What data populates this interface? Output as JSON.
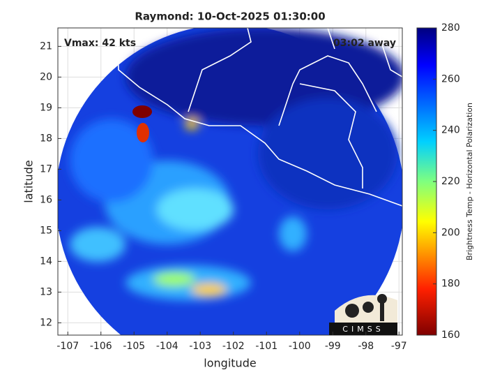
{
  "title": "Raymond: 10-Oct-2025 01:30:00",
  "annotations": {
    "vmax": "Vmax: 42 kts",
    "away": "03:02 away"
  },
  "x_axis": {
    "label": "longitude",
    "lim": [
      -107.3,
      -96.9
    ],
    "ticks": [
      -107,
      -106,
      -105,
      -104,
      -103,
      -102,
      -101,
      -100,
      -99,
      -98,
      -97
    ]
  },
  "y_axis": {
    "label": "latitude",
    "lim": [
      11.6,
      21.6
    ],
    "ticks": [
      12,
      13,
      14,
      15,
      16,
      17,
      18,
      19,
      20,
      21
    ]
  },
  "colorbar": {
    "label": "Brightness Temp - Horizontal Polarization",
    "lim": [
      160,
      280
    ],
    "ticks": [
      160,
      180,
      200,
      220,
      240,
      260,
      280
    ]
  },
  "logo": "CIMSS"
}
